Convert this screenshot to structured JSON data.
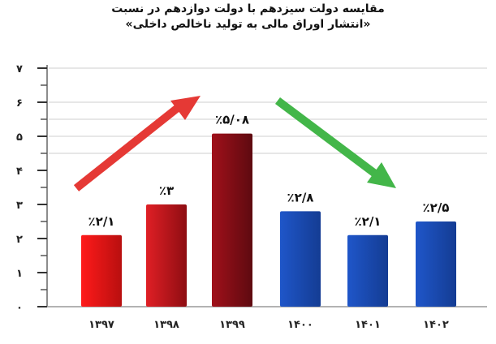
{
  "chart_data": {
    "type": "bar",
    "title": "مقایسه دولت سیزدهم با دولت دوازدهم در نسبت",
    "subtitle": "«انتشار اوراق مالی به تولید ناخالص داخلی»",
    "xlabel": "",
    "ylabel": "",
    "categories": [
      "۱۳۹۷",
      "۱۳۹۸",
      "۱۳۹۹",
      "۱۴۰۰",
      "۱۴۰۱",
      "۱۴۰۲"
    ],
    "values": [
      2.1,
      3,
      5.08,
      2.8,
      2.1,
      2.5
    ],
    "data_labels": [
      "٪۲/۱",
      "٪۳",
      "٪۵/۰۸",
      "٪۲/۸",
      "٪۲/۱",
      "٪۲/۵"
    ],
    "ylim": [
      0,
      7
    ],
    "yticks": [
      0,
      1,
      2,
      3,
      4,
      5,
      6,
      7
    ],
    "ytick_labels": [
      "۰",
      "۱",
      "۲",
      "۳",
      "۴",
      "۵",
      "۶",
      "۷"
    ],
    "grid": true,
    "bar_colors": {
      "1397": [
        "#ff1a1a",
        "#b80f0f"
      ],
      "1398": [
        "#e01f25",
        "#8e0d12"
      ],
      "1399": [
        "#a0101a",
        "#5e0a10"
      ],
      "1400": [
        "#1f56c9",
        "#143c93"
      ],
      "1401": [
        "#1f56c9",
        "#143c93"
      ],
      "1402": [
        "#1f56c9",
        "#143c93"
      ]
    },
    "annotations": [
      {
        "type": "arrow",
        "direction": "up",
        "color": "#e53935"
      },
      {
        "type": "arrow",
        "direction": "down",
        "color": "#43b649"
      }
    ]
  }
}
